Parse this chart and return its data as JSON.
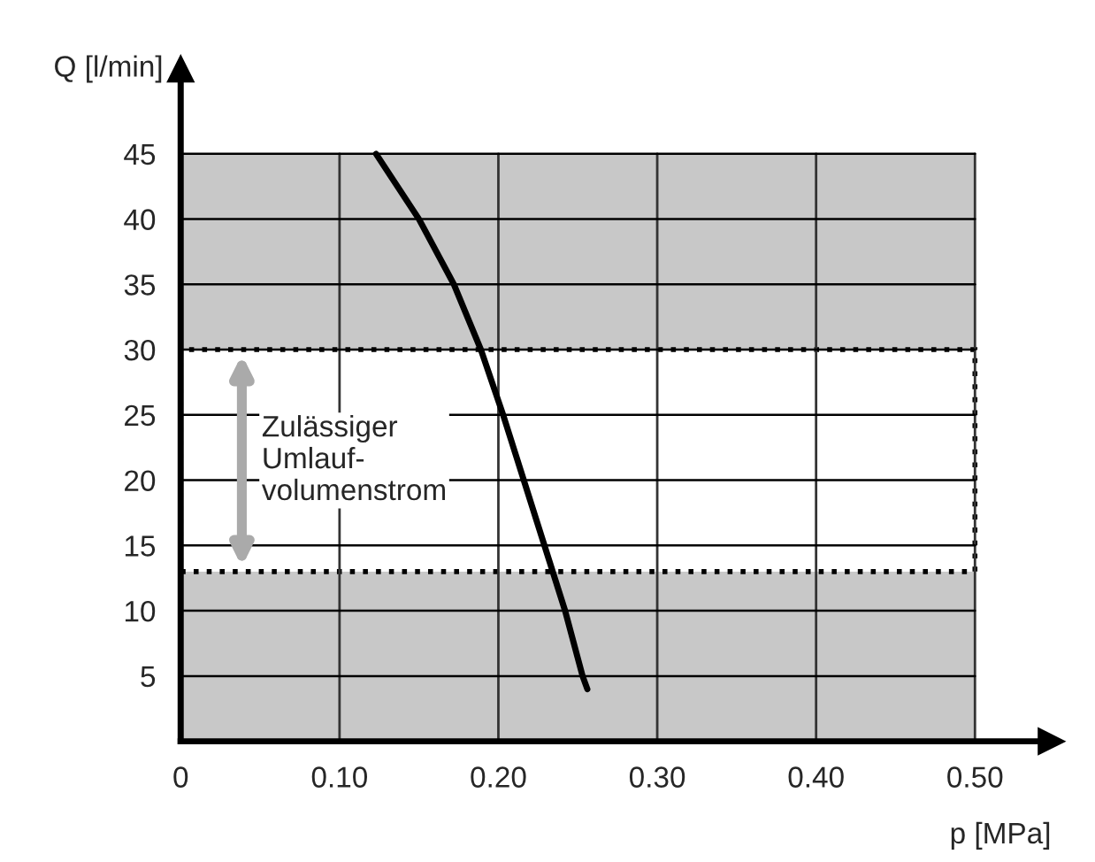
{
  "chart_data": {
    "type": "line",
    "xlabel": "p [MPa]",
    "ylabel": "Q [l/min]",
    "series": [
      {
        "color": "#000000",
        "x": [
          0.123,
          0.15,
          0.172,
          0.189,
          0.203,
          0.216,
          0.229,
          0.242,
          0.253,
          0.256
        ],
        "values": [
          45,
          40,
          35,
          30,
          25,
          20,
          15,
          10,
          5,
          4
        ]
      }
    ],
    "xlim": [
      0,
      0.548
    ],
    "ylim": [
      0,
      51.5
    ],
    "xticks": [
      {
        "value": 0,
        "label": "0"
      },
      {
        "value": 0.1,
        "label": "0.10"
      },
      {
        "value": 0.2,
        "label": "0.20"
      },
      {
        "value": 0.3,
        "label": "0.30"
      },
      {
        "value": 0.4,
        "label": "0.40"
      },
      {
        "value": 0.5,
        "label": "0.50"
      }
    ],
    "yticks": [
      5,
      10,
      15,
      20,
      25,
      30,
      35,
      40,
      45
    ],
    "bands": [
      {
        "axis": "y",
        "from": 0,
        "to": 13,
        "color": "#c8c8c8"
      },
      {
        "axis": "y",
        "from": 30,
        "to": 45,
        "color": "#c8c8c8"
      },
      {
        "axis": "y",
        "from": 13,
        "to": 30,
        "color": "#ffffff",
        "label": "Zulässiger\nUmlauf-\nvolumenstrom"
      }
    ],
    "grid": true
  }
}
